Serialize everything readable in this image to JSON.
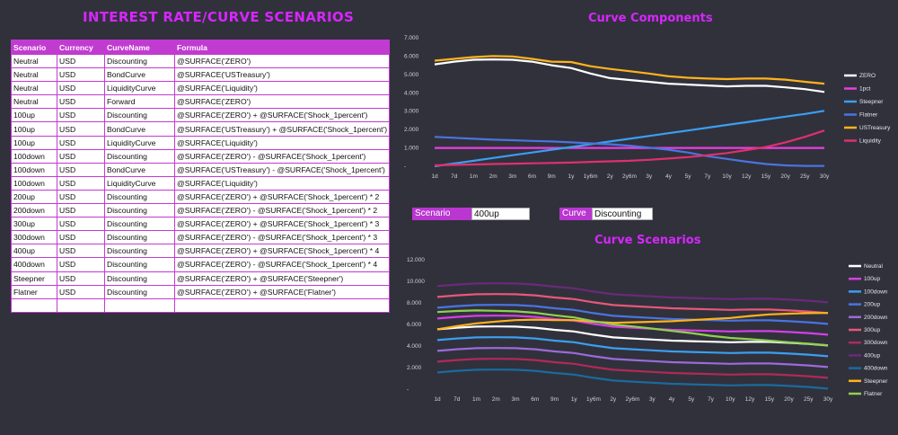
{
  "page_title": "INTEREST RATE/CURVE  SCENARIOS",
  "table": {
    "headers": [
      "Scenario",
      "Currency",
      "CurveName",
      "Formula"
    ],
    "rows": [
      [
        "Neutral",
        "USD",
        "Discounting",
        "@SURFACE('ZERO')"
      ],
      [
        "Neutral",
        "USD",
        "BondCurve",
        "@SURFACE('USTreasury')"
      ],
      [
        "Neutral",
        "USD",
        "LiquidityCurve",
        "@SURFACE('Liquidity')"
      ],
      [
        "Neutral",
        "USD",
        "Forward",
        "@SURFACE('ZERO')"
      ],
      [
        "100up",
        "USD",
        "Discounting",
        "@SURFACE('ZERO') + @SURFACE('Shock_1percent')"
      ],
      [
        "100up",
        "USD",
        "BondCurve",
        "@SURFACE('USTreasury') + @SURFACE('Shock_1percent')"
      ],
      [
        "100up",
        "USD",
        "LiquidityCurve",
        "@SURFACE('Liquidity')"
      ],
      [
        "100down",
        "USD",
        "Discounting",
        "@SURFACE('ZERO') - @SURFACE('Shock_1percent')"
      ],
      [
        "100down",
        "USD",
        "BondCurve",
        "@SURFACE('USTreasury') - @SURFACE('Shock_1percent')"
      ],
      [
        "100down",
        "USD",
        "LiquidityCurve",
        "@SURFACE('Liquidity')"
      ],
      [
        "200up",
        "USD",
        "Discounting",
        "@SURFACE('ZERO') + @SURFACE('Shock_1percent') * 2"
      ],
      [
        "200down",
        "USD",
        "Discounting",
        "@SURFACE('ZERO') - @SURFACE('Shock_1percent') * 2"
      ],
      [
        "300up",
        "USD",
        "Discounting",
        "@SURFACE('ZERO') + @SURFACE('Shock_1percent') * 3"
      ],
      [
        "300down",
        "USD",
        "Discounting",
        "@SURFACE('ZERO') - @SURFACE('Shock_1percent') * 3"
      ],
      [
        "400up",
        "USD",
        "Discounting",
        "@SURFACE('ZERO') + @SURFACE('Shock_1percent') * 4"
      ],
      [
        "400down",
        "USD",
        "Discounting",
        "@SURFACE('ZERO') - @SURFACE('Shock_1percent') * 4"
      ],
      [
        "Steepner",
        "USD",
        "Discounting",
        "@SURFACE('ZERO') + @SURFACE('Steepner')"
      ],
      [
        "Flatner",
        "USD",
        "Discounting",
        "@SURFACE('ZERO') + @SURFACE('Flatner')"
      ],
      [
        "",
        "",
        "",
        ""
      ]
    ]
  },
  "selectors": {
    "scenario_label": "Scenario",
    "scenario_value": "400up",
    "curve_label": "Curve",
    "curve_value": "Discounting"
  },
  "chart_data": [
    {
      "type": "line",
      "title": "Curve Components",
      "categories": [
        "1d",
        "7d",
        "1m",
        "2m",
        "3m",
        "6m",
        "9m",
        "1y",
        "1y6m",
        "2y",
        "2y6m",
        "3y",
        "4y",
        "5y",
        "7y",
        "10y",
        "12y",
        "15y",
        "20y",
        "25y",
        "30y"
      ],
      "yticks": [
        "7.000",
        "6.000",
        "5.000",
        "4.000",
        "3.000",
        "2.000",
        "1.000",
        "-"
      ],
      "ylim": [
        0,
        7
      ],
      "legend_position": "right",
      "series": [
        {
          "name": "ZERO",
          "color": "#ffffff",
          "values": [
            5.55,
            5.7,
            5.8,
            5.82,
            5.8,
            5.7,
            5.5,
            5.35,
            5.05,
            4.8,
            4.7,
            4.6,
            4.5,
            4.45,
            4.4,
            4.35,
            4.38,
            4.38,
            4.3,
            4.2,
            4.05
          ]
        },
        {
          "name": "1pct",
          "color": "#e83fe0",
          "values": [
            1,
            1,
            1,
            1,
            1,
            1,
            1,
            1,
            1,
            1,
            1,
            1,
            1,
            1,
            1,
            1,
            1,
            1,
            1,
            1,
            1
          ]
        },
        {
          "name": "Steepner",
          "color": "#3a9ff0",
          "values": [
            0,
            0.15,
            0.3,
            0.45,
            0.6,
            0.75,
            0.9,
            1.05,
            1.2,
            1.35,
            1.5,
            1.65,
            1.8,
            1.95,
            2.1,
            2.25,
            2.4,
            2.55,
            2.7,
            2.85,
            3.02
          ]
        },
        {
          "name": "Flatner",
          "color": "#4a74e0",
          "values": [
            1.6,
            1.55,
            1.5,
            1.45,
            1.42,
            1.38,
            1.35,
            1.3,
            1.25,
            1.2,
            1.12,
            1.02,
            0.9,
            0.75,
            0.55,
            0.4,
            0.25,
            0.12,
            0.05,
            0.02,
            0.02
          ]
        },
        {
          "name": "USTreasury",
          "color": "#ffb31a",
          "values": [
            5.75,
            5.85,
            5.95,
            6.0,
            5.98,
            5.85,
            5.7,
            5.68,
            5.45,
            5.3,
            5.18,
            5.05,
            4.9,
            4.82,
            4.78,
            4.75,
            4.78,
            4.78,
            4.72,
            4.6,
            4.5
          ]
        },
        {
          "name": "Liquidity",
          "color": "#e0306e",
          "values": [
            0.05,
            0.08,
            0.1,
            0.12,
            0.14,
            0.16,
            0.18,
            0.2,
            0.24,
            0.27,
            0.3,
            0.35,
            0.42,
            0.5,
            0.6,
            0.72,
            0.88,
            1.05,
            1.3,
            1.6,
            1.95
          ]
        }
      ]
    },
    {
      "type": "line",
      "title": "Curve Scenarios",
      "categories": [
        "1d",
        "7d",
        "1m",
        "2m",
        "3m",
        "6m",
        "9m",
        "1y",
        "1y6m",
        "2y",
        "2y6m",
        "3y",
        "4y",
        "5y",
        "7y",
        "10y",
        "12y",
        "15y",
        "20y",
        "25y",
        "30y"
      ],
      "yticks": [
        "12.000",
        "10.000",
        "8.000",
        "6.000",
        "4.000",
        "2.000",
        "-"
      ],
      "ylim": [
        0,
        12
      ],
      "legend_position": "right",
      "series": [
        {
          "name": "Neutral",
          "color": "#ffffff",
          "values": [
            5.55,
            5.7,
            5.8,
            5.82,
            5.8,
            5.7,
            5.5,
            5.35,
            5.05,
            4.8,
            4.7,
            4.6,
            4.5,
            4.45,
            4.4,
            4.35,
            4.38,
            4.38,
            4.3,
            4.2,
            4.05
          ]
        },
        {
          "name": "100up",
          "color": "#d63fe6",
          "values": [
            6.55,
            6.7,
            6.8,
            6.82,
            6.8,
            6.7,
            6.5,
            6.35,
            6.05,
            5.8,
            5.7,
            5.6,
            5.5,
            5.45,
            5.4,
            5.35,
            5.38,
            5.38,
            5.3,
            5.2,
            5.05
          ]
        },
        {
          "name": "100down",
          "color": "#3a9ff0",
          "values": [
            4.55,
            4.7,
            4.8,
            4.82,
            4.8,
            4.7,
            4.5,
            4.35,
            4.05,
            3.8,
            3.7,
            3.6,
            3.5,
            3.45,
            3.4,
            3.35,
            3.38,
            3.38,
            3.3,
            3.2,
            3.05
          ]
        },
        {
          "name": "200up",
          "color": "#4a74e0",
          "values": [
            7.55,
            7.7,
            7.8,
            7.82,
            7.8,
            7.7,
            7.5,
            7.35,
            7.05,
            6.8,
            6.7,
            6.6,
            6.5,
            6.45,
            6.4,
            6.35,
            6.38,
            6.38,
            6.3,
            6.2,
            6.05
          ]
        },
        {
          "name": "200down",
          "color": "#9b6bd8",
          "values": [
            3.55,
            3.7,
            3.8,
            3.82,
            3.8,
            3.7,
            3.5,
            3.35,
            3.05,
            2.8,
            2.7,
            2.6,
            2.5,
            2.45,
            2.4,
            2.35,
            2.38,
            2.38,
            2.3,
            2.2,
            2.05
          ]
        },
        {
          "name": "300up",
          "color": "#e8577a",
          "values": [
            8.55,
            8.7,
            8.8,
            8.82,
            8.8,
            8.7,
            8.5,
            8.35,
            8.05,
            7.8,
            7.7,
            7.6,
            7.5,
            7.45,
            7.4,
            7.35,
            7.38,
            7.38,
            7.3,
            7.2,
            7.05
          ]
        },
        {
          "name": "300down",
          "color": "#b02a58",
          "values": [
            2.55,
            2.7,
            2.8,
            2.82,
            2.8,
            2.7,
            2.5,
            2.35,
            2.05,
            1.8,
            1.7,
            1.6,
            1.5,
            1.45,
            1.4,
            1.35,
            1.38,
            1.38,
            1.3,
            1.2,
            1.05
          ]
        },
        {
          "name": "400up",
          "color": "#6a2a78",
          "values": [
            9.55,
            9.7,
            9.8,
            9.82,
            9.8,
            9.7,
            9.5,
            9.35,
            9.05,
            8.8,
            8.7,
            8.6,
            8.5,
            8.45,
            8.4,
            8.35,
            8.38,
            8.38,
            8.3,
            8.2,
            8.05
          ]
        },
        {
          "name": "400down",
          "color": "#1a6b9e",
          "values": [
            1.55,
            1.7,
            1.8,
            1.82,
            1.8,
            1.7,
            1.5,
            1.35,
            1.05,
            0.8,
            0.7,
            0.6,
            0.5,
            0.45,
            0.4,
            0.35,
            0.38,
            0.38,
            0.3,
            0.2,
            0.05
          ]
        },
        {
          "name": "Steepner",
          "color": "#ffb31a",
          "values": [
            5.55,
            5.85,
            6.1,
            6.27,
            6.4,
            6.45,
            6.4,
            6.4,
            6.25,
            6.15,
            6.2,
            6.25,
            6.3,
            6.4,
            6.5,
            6.6,
            6.78,
            6.93,
            7.0,
            7.05,
            7.07
          ]
        },
        {
          "name": "Flatner",
          "color": "#8fd14f",
          "values": [
            7.15,
            7.25,
            7.3,
            7.27,
            7.22,
            7.08,
            6.85,
            6.65,
            6.3,
            6.0,
            5.82,
            5.62,
            5.4,
            5.2,
            4.95,
            4.75,
            4.63,
            4.5,
            4.35,
            4.22,
            4.07
          ]
        }
      ]
    }
  ]
}
